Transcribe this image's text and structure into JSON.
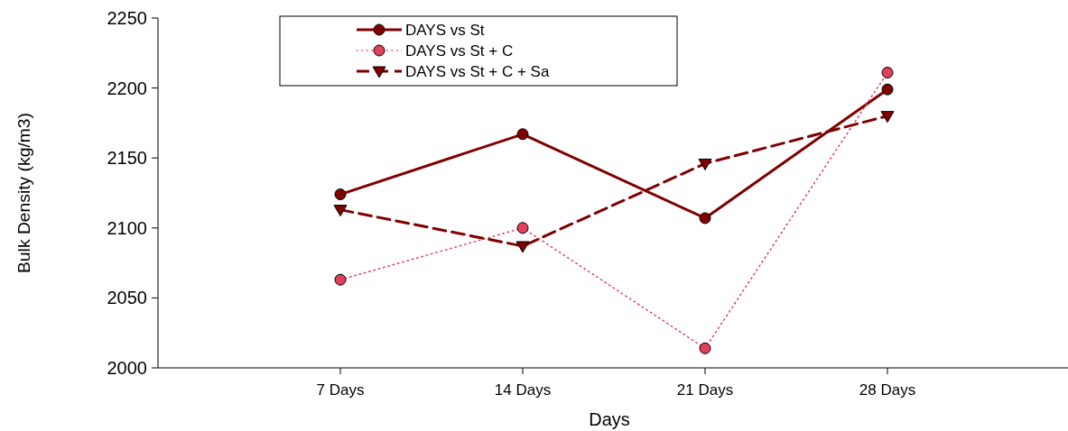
{
  "chart_data": {
    "type": "line",
    "xlabel": "Days",
    "ylabel": "Bulk Density (kg/m3)",
    "categories": [
      "7 Days",
      "14 Days",
      "21 Days",
      "28 Days"
    ],
    "ylim": [
      2000,
      2250
    ],
    "yticks": [
      2000,
      2050,
      2100,
      2150,
      2200,
      2250
    ],
    "grid": false,
    "legend": "top left",
    "series": [
      {
        "name": "DAYS vs St",
        "color": "#800000",
        "line_style": "solid",
        "marker": "circle",
        "values": [
          2124,
          2167,
          2107,
          2199
        ]
      },
      {
        "name": "DAYS vs St + C",
        "color": "#e0405a",
        "line_style": "dotted",
        "marker": "circle",
        "values": [
          2063,
          2100,
          2014,
          2211
        ]
      },
      {
        "name": "DAYS vs St + C + Sa",
        "color": "#800000",
        "line_style": "dashed",
        "marker": "triangle",
        "values": [
          2113,
          2087,
          2146,
          2180
        ]
      }
    ]
  }
}
